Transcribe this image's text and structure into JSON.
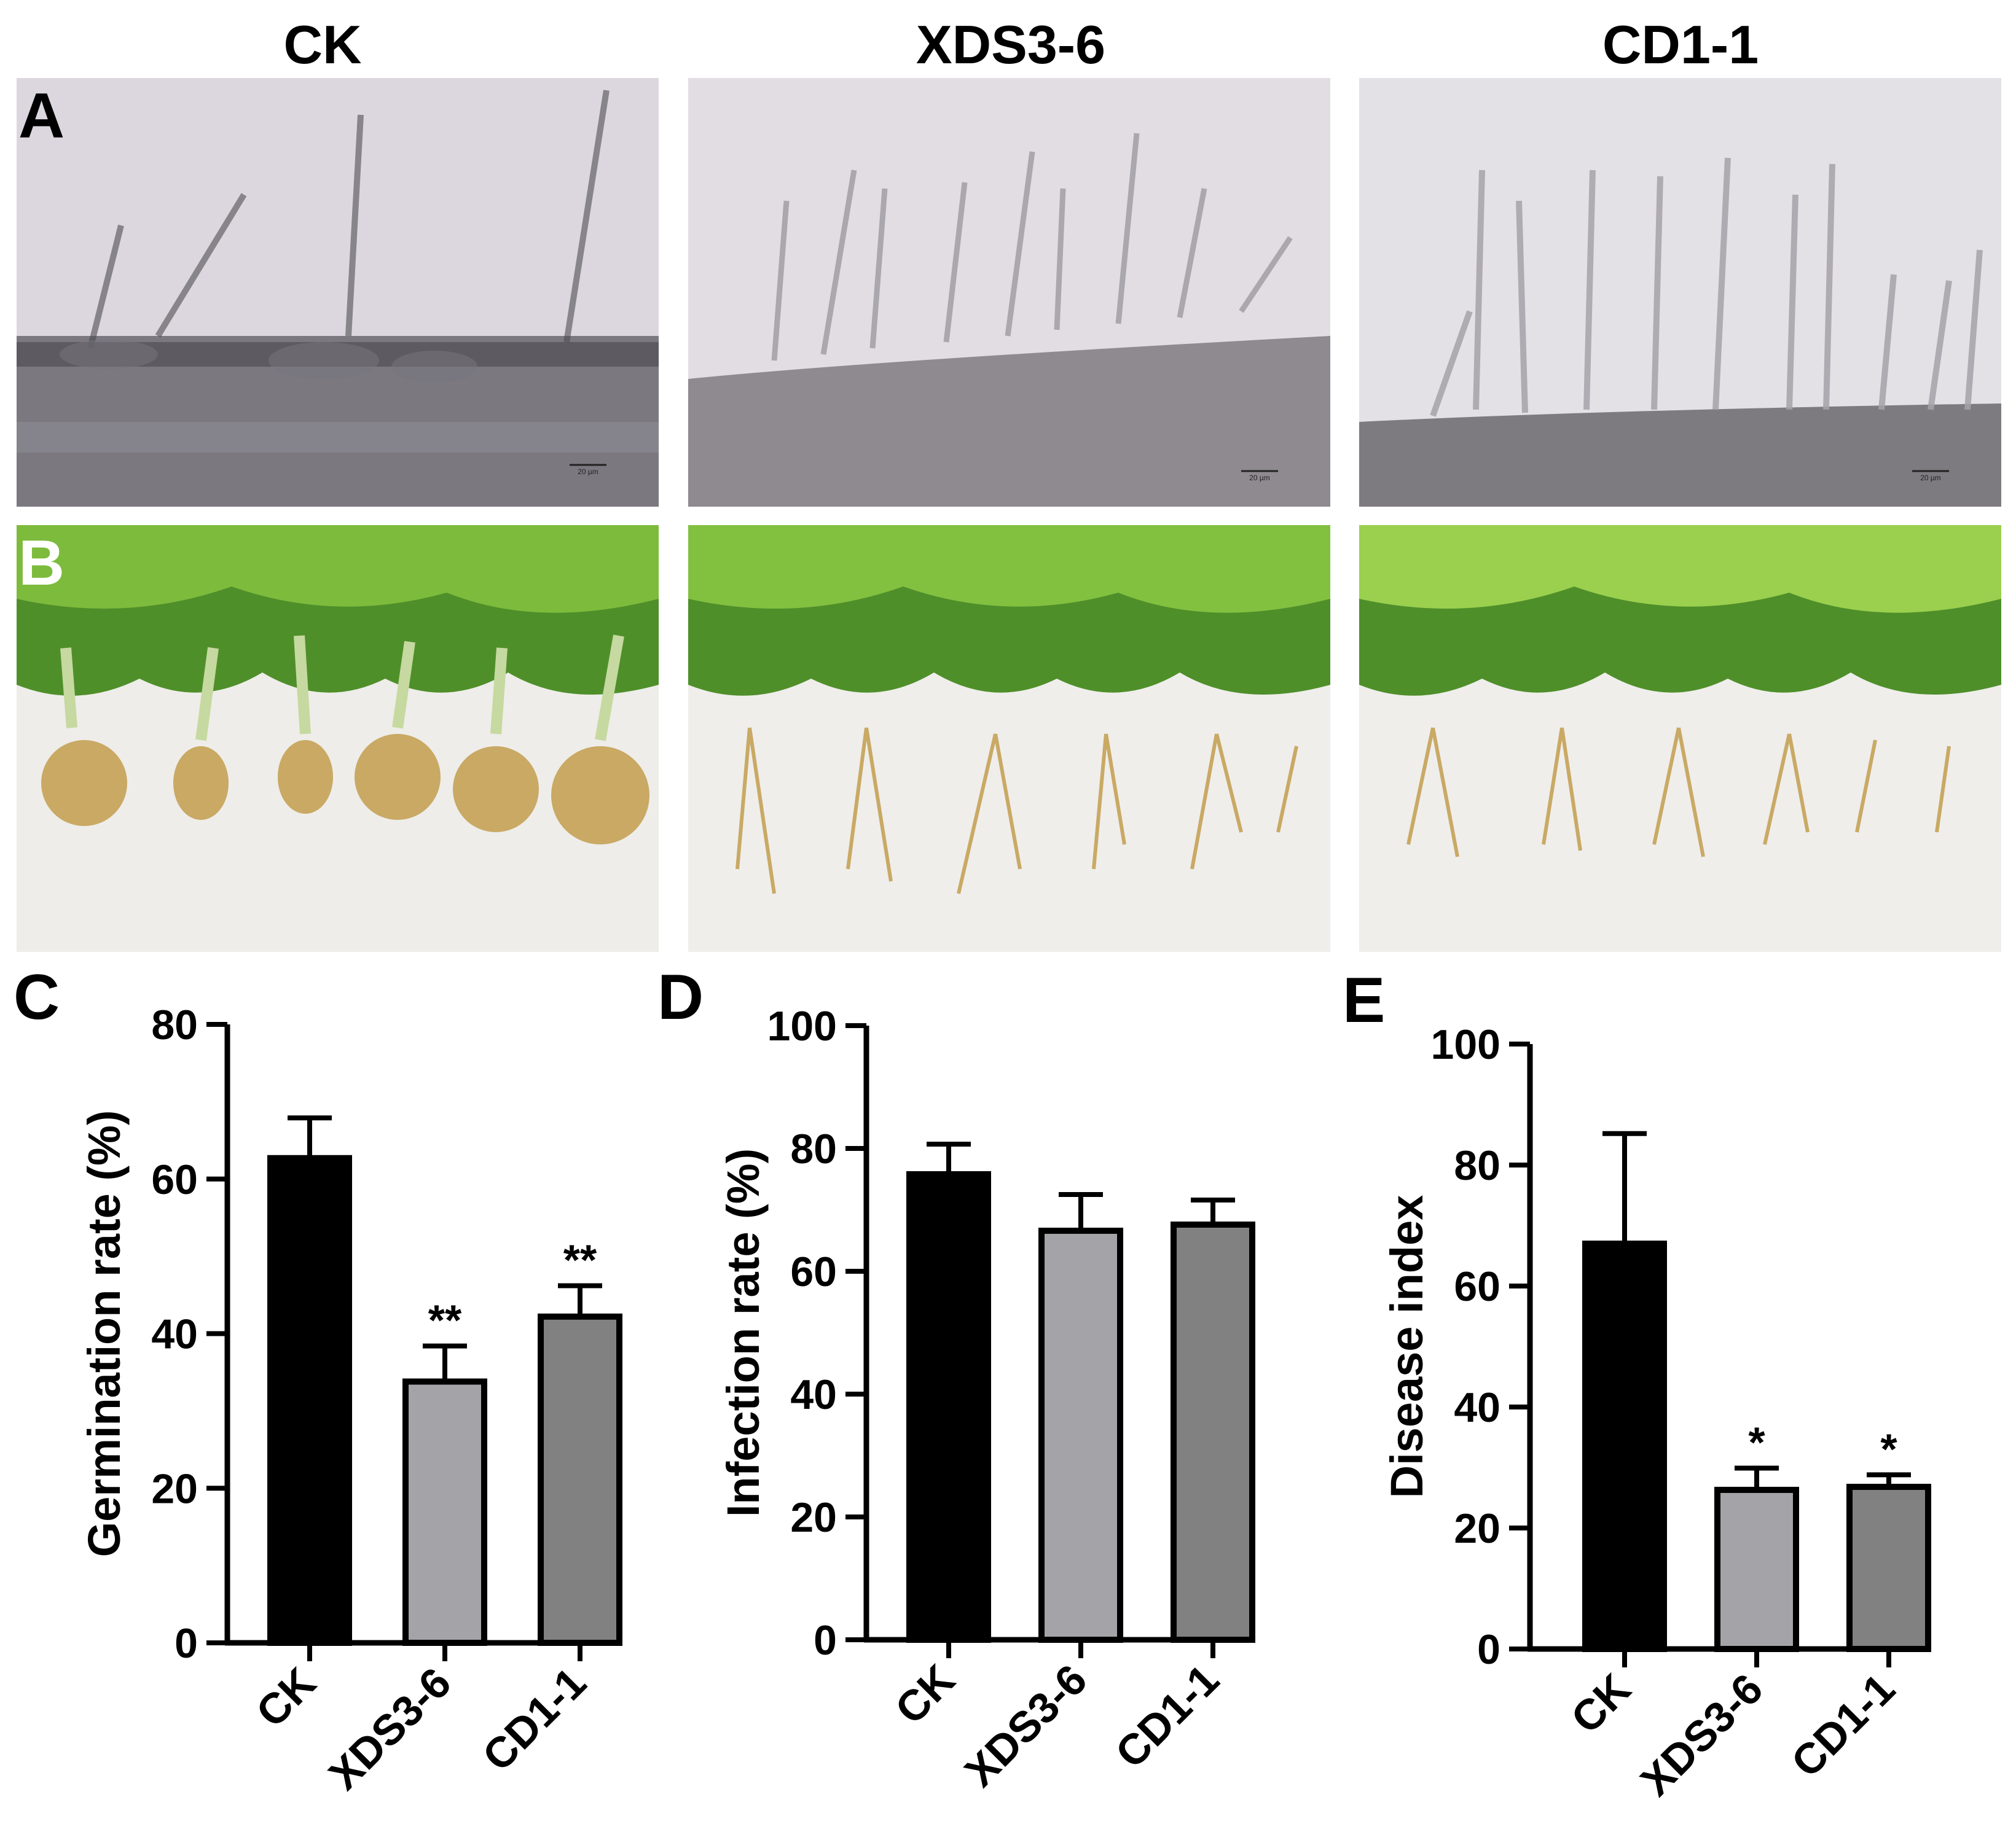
{
  "columns": [
    "CK",
    "XDS3-6",
    "CD1-1"
  ],
  "panel_labels": {
    "A": "A",
    "B": "B",
    "C": "C",
    "D": "D",
    "E": "E"
  },
  "micrographs": {
    "scale_bar": "20 µm"
  },
  "colors": {
    "CK": "#000000",
    "XDS3-6": "#a3a3a8",
    "CD1-1": "#818181"
  },
  "chart_data": [
    {
      "type": "bar",
      "panel": "C",
      "categories": [
        "CK",
        "XDS3-6",
        "CD1-1"
      ],
      "values": [
        62.7,
        33.8,
        42.2
      ],
      "errors": [
        5.2,
        4.6,
        4.0
      ],
      "significance": [
        "",
        "**",
        "**"
      ],
      "ylabel": "Germination rate (%)",
      "ylim": [
        0,
        80
      ],
      "yticks": [
        0,
        20,
        40,
        60,
        80
      ]
    },
    {
      "type": "bar",
      "panel": "D",
      "categories": [
        "CK",
        "XDS3-6",
        "CD1-1"
      ],
      "values": [
        75.8,
        66.6,
        67.6
      ],
      "errors": [
        4.9,
        5.9,
        4.0
      ],
      "significance": [
        "",
        "",
        ""
      ],
      "ylabel": "Infection rate (%)",
      "ylim": [
        0,
        100
      ],
      "yticks": [
        0,
        20,
        40,
        60,
        80,
        100
      ]
    },
    {
      "type": "bar",
      "panel": "E",
      "categories": [
        "CK",
        "XDS3-6",
        "CD1-1"
      ],
      "values": [
        67.0,
        26.3,
        26.8
      ],
      "errors": [
        18.2,
        3.6,
        2.0
      ],
      "significance": [
        "",
        "*",
        "*"
      ],
      "ylabel": "Disease index",
      "ylim": [
        0,
        100
      ],
      "yticks": [
        0,
        20,
        40,
        60,
        80,
        100
      ]
    }
  ]
}
